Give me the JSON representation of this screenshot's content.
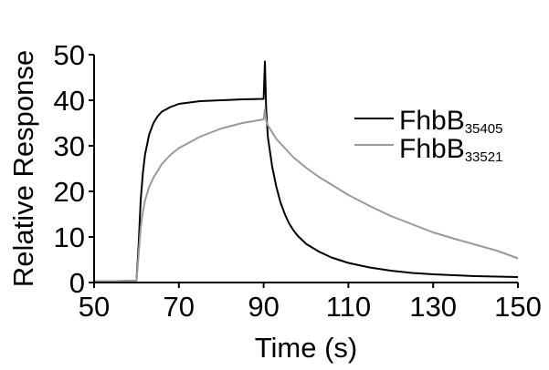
{
  "chart_data": {
    "type": "line",
    "title": "",
    "xlabel": "Time (s)",
    "ylabel": "Relative Response",
    "xlim": [
      50,
      150
    ],
    "ylim": [
      0,
      50
    ],
    "x_ticks": [
      "50",
      "70",
      "90",
      "110",
      "130",
      "150"
    ],
    "y_ticks": [
      "0",
      "10",
      "20",
      "30",
      "40",
      "50"
    ],
    "grid": false,
    "legend_placement": "right",
    "series": [
      {
        "name": "FhbB35405",
        "name_base": "FhbB",
        "name_sub": "35405",
        "color": "#000000",
        "x": [
          50,
          55,
          60,
          60.5,
          61,
          61.5,
          62,
          63,
          64,
          65,
          66,
          68,
          70,
          75,
          80,
          85,
          90,
          90.3,
          90.6,
          91,
          92,
          93,
          94,
          95,
          96,
          97,
          98,
          100,
          103,
          106,
          110,
          115,
          120,
          125,
          130,
          135,
          140,
          145,
          150
        ],
        "y": [
          0.3,
          0.3,
          0.4,
          8,
          18,
          24,
          28,
          32.5,
          35,
          36.5,
          37.5,
          38.5,
          39.2,
          39.8,
          40.0,
          40.2,
          40.3,
          48.5,
          38,
          32,
          25.5,
          21,
          17.5,
          15,
          13,
          11.5,
          10.3,
          8.5,
          6.8,
          5.5,
          4.3,
          3.3,
          2.6,
          2.1,
          1.8,
          1.6,
          1.4,
          1.3,
          1.2
        ]
      },
      {
        "name": "FhbB33521",
        "name_base": "FhbB",
        "name_sub": "33521",
        "color": "#999999",
        "x": [
          50,
          55,
          60,
          60.5,
          61,
          61.5,
          62,
          63,
          64,
          65,
          66,
          68,
          70,
          75,
          80,
          85,
          90,
          90.3,
          90.6,
          91,
          92,
          93,
          95,
          97,
          100,
          103,
          106,
          110,
          115,
          120,
          125,
          130,
          135,
          140,
          145,
          150
        ],
        "y": [
          0.3,
          0.3,
          0.4,
          6,
          12,
          15.5,
          18,
          21,
          23,
          24.5,
          26,
          28,
          29.5,
          32,
          33.8,
          35,
          35.8,
          38,
          35.5,
          34.5,
          33,
          31.5,
          29.5,
          27.5,
          25.2,
          23.2,
          21.5,
          19.2,
          16.8,
          14.6,
          12.8,
          11.0,
          9.6,
          8.3,
          7.0,
          5.3
        ]
      }
    ]
  }
}
